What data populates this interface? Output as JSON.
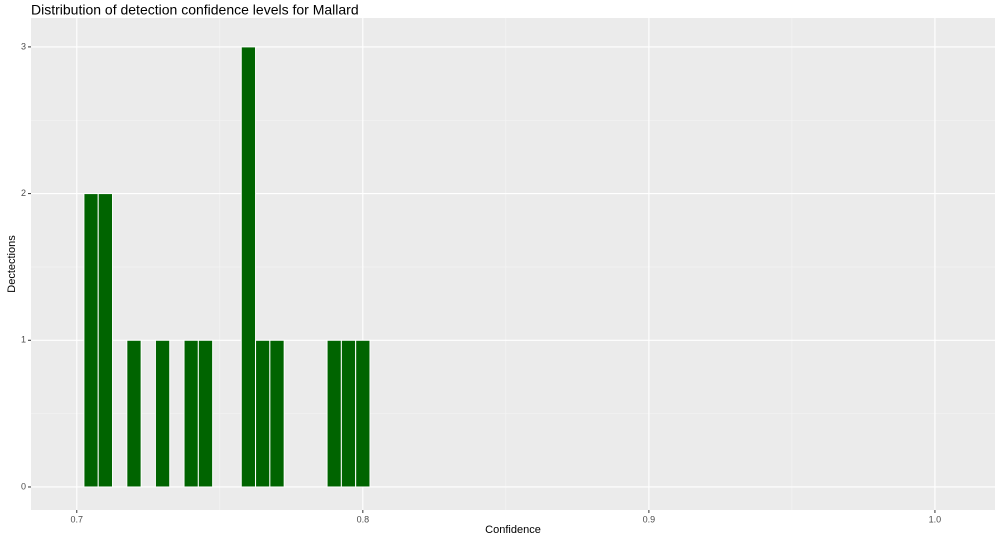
{
  "chart_data": {
    "type": "histogram",
    "title": "Distribution of detection confidence levels for Mallard",
    "x_label": "Confidence",
    "y_label": "Dectections",
    "bins": [
      0.7025,
      0.7075,
      0.7125,
      0.7175,
      0.7225,
      0.7275,
      0.7325,
      0.7375,
      0.7425,
      0.7475,
      0.7525,
      0.7575,
      0.7625,
      0.7675,
      0.7725,
      0.7775,
      0.7825,
      0.7875,
      0.7925,
      0.7975,
      0.8025
    ],
    "values": [
      2,
      2,
      0,
      1,
      0,
      1,
      0,
      1,
      1,
      0,
      0,
      3,
      1,
      1,
      0,
      0,
      0,
      1,
      1,
      1
    ],
    "color": "#006400",
    "xlim": [
      0.684,
      1.021
    ],
    "xticks": [
      0.7,
      0.8,
      0.9,
      {
        "value": 1,
        "label": "1.0"
      }
    ],
    "ylim": [
      -0.157,
      3.197
    ],
    "yticks": [
      0,
      1,
      2,
      3
    ],
    "grid": true
  }
}
